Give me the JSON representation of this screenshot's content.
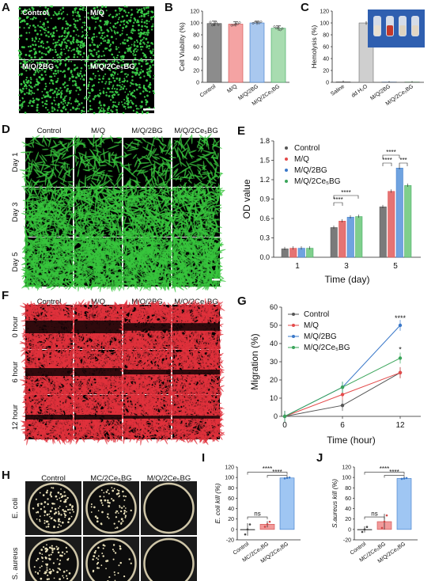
{
  "colors": {
    "control": "#555555",
    "mq": "#e34a4a",
    "mq2bg": "#3a78c9",
    "mq2ce": "#3aa55a",
    "bar_control": "#8c8c8c",
    "bar_mq": "#f4a3a3",
    "bar_mq2bg": "#a9c8ef",
    "bar_mq2ce": "#a8dcb0",
    "kill_ctrl": "#b7b7b7",
    "kill_mc": "#f29a9a",
    "kill_mq": "#9fc6f3"
  },
  "panels": {
    "A": {
      "letter": "A",
      "labels": [
        "Control",
        "M/Q",
        "M/Q/2BG",
        "M/Q/2Ce₅BG"
      ]
    },
    "D": {
      "letter": "D",
      "cols": [
        "Control",
        "M/Q",
        "M/Q/2BG",
        "M/Q/2Ce₅BG"
      ],
      "rows": [
        "Day 1",
        "Day 3",
        "Day 5"
      ]
    },
    "F": {
      "letter": "F",
      "cols": [
        "Control",
        "M/Q",
        "M/Q/2BG",
        "M/Q/2Ce₅BG"
      ],
      "rows": [
        "0 hour",
        "6 hour",
        "12 hour"
      ]
    },
    "H": {
      "letter": "H",
      "cols": [
        "Control",
        "MC/2Ce₅BG",
        "M/Q/2Ce₅BG"
      ],
      "rows": [
        "E. coli",
        "S. aureus"
      ]
    }
  },
  "chart_data": [
    {
      "id": "B",
      "letter": "B",
      "type": "bar",
      "ylabel": "Cell Viability (%)",
      "ylim": [
        0,
        120
      ],
      "yticks": [
        0,
        20,
        40,
        60,
        80,
        100,
        120
      ],
      "categories": [
        "Control",
        "M/Q",
        "M/Q/2BG",
        "M/Q/2Ce₅BG"
      ],
      "values": [
        99,
        98,
        100,
        91
      ],
      "errors": [
        4,
        4,
        3,
        4
      ]
    },
    {
      "id": "C",
      "letter": "C",
      "type": "bar",
      "ylabel": "Hemolysis (%)",
      "ylim": [
        0,
        120
      ],
      "yticks": [
        0,
        20,
        40,
        60,
        80,
        100,
        120
      ],
      "categories": [
        "Saline",
        "dd H₂O",
        "M/Q/2BG",
        "M/Q/2Ce₅BG"
      ],
      "values": [
        1,
        100,
        1,
        1
      ],
      "errors": [
        2,
        3,
        1,
        1
      ]
    },
    {
      "id": "E",
      "letter": "E",
      "type": "bar",
      "ylabel": "OD value",
      "xlabel": "Time (day)",
      "ylim": [
        0,
        1.8
      ],
      "yticks": [
        "0.0",
        "0.3",
        "0.6",
        "0.9",
        "1.2",
        "1.5",
        "1.8"
      ],
      "categories": [
        "1",
        "3",
        "5"
      ],
      "legend": [
        "Control",
        "M/Q",
        "M/Q/2BG",
        "M/Q/2Ce₅BG"
      ],
      "series": [
        {
          "name": "Control",
          "values": [
            0.13,
            0.46,
            0.78
          ]
        },
        {
          "name": "M/Q",
          "values": [
            0.14,
            0.56,
            1.02
          ]
        },
        {
          "name": "M/Q/2BG",
          "values": [
            0.14,
            0.62,
            1.38
          ]
        },
        {
          "name": "M/Q/2Ce₅BG",
          "values": [
            0.14,
            0.63,
            1.11
          ]
        }
      ],
      "sig": [
        "****",
        "****",
        "****",
        "****",
        "***"
      ]
    },
    {
      "id": "G",
      "letter": "G",
      "type": "line",
      "ylabel": "Migration (%)",
      "xlabel": "Time (hour)",
      "ylim": [
        0,
        60
      ],
      "yticks": [
        0,
        10,
        20,
        30,
        40,
        50,
        60
      ],
      "x": [
        0,
        6,
        12
      ],
      "xticks": [
        "0",
        "6",
        "12"
      ],
      "legend": [
        "Control",
        "M/Q",
        "M/Q/2BG",
        "M/Q/2Ce₅BG"
      ],
      "series": [
        {
          "name": "Control",
          "values": [
            0,
            6,
            24
          ]
        },
        {
          "name": "M/Q",
          "values": [
            0,
            12,
            24
          ]
        },
        {
          "name": "M/Q/2BG",
          "values": [
            0,
            16,
            50
          ]
        },
        {
          "name": "M/Q/2Ce₅BG",
          "values": [
            0,
            16,
            32
          ]
        }
      ],
      "sig": [
        "****",
        "*"
      ]
    },
    {
      "id": "I",
      "letter": "I",
      "type": "bar",
      "ylabel": "E. coli kill (%)",
      "ylim": [
        -20,
        120
      ],
      "yticks": [
        -20,
        0,
        20,
        40,
        60,
        80,
        100,
        120
      ],
      "categories": [
        "Control",
        "MC/2Ce₅BG",
        "M/Q/2Ce₅BG"
      ],
      "values": [
        0,
        10,
        99
      ],
      "errors": [
        12,
        6,
        1
      ],
      "sig": [
        "ns",
        "****",
        "****"
      ]
    },
    {
      "id": "J",
      "letter": "J",
      "type": "bar",
      "ylabel": "S.aureus kill (%)",
      "ylim": [
        -20,
        120
      ],
      "yticks": [
        -20,
        0,
        20,
        40,
        60,
        80,
        100,
        120
      ],
      "categories": [
        "Control",
        "MC/2Ce₅BG",
        "M/Q/2Ce₅BG"
      ],
      "values": [
        0,
        15,
        98
      ],
      "errors": [
        6,
        15,
        1
      ],
      "sig": [
        "ns",
        "****",
        "****"
      ]
    }
  ]
}
